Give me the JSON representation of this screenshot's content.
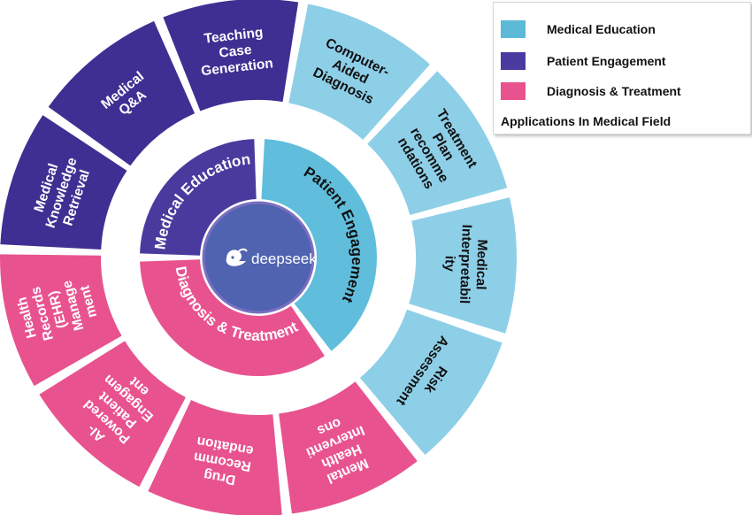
{
  "colors": {
    "education_outer": "#8ecfe8",
    "education_inner": "#60bedc",
    "engagement": "#3f2f93",
    "engagement_inner": "#4b3a9e",
    "diagnosis": "#e8538f",
    "center": "#4f63b0",
    "center_ring": "#7a6fc0"
  },
  "legend": {
    "items": [
      {
        "label": "Medical Education",
        "color": "#5cbad8"
      },
      {
        "label": "Patient Engagement",
        "color": "#4a3ba0"
      },
      {
        "label": "Diagnosis & Treatment",
        "color": "#e8538f"
      }
    ],
    "caption": "Applications In Medical Field"
  },
  "center": {
    "logo_text": "deepseek",
    "logo_icon": "whale-icon"
  },
  "inner_ring": [
    {
      "key": "medical-education",
      "label": "Medical Education",
      "color": "#4b3a9e",
      "text_color": "#ffffff"
    },
    {
      "key": "patient-engagement",
      "label": "Patient Engagement",
      "color": "#60bedc",
      "text_color": "#111111"
    },
    {
      "key": "diagnosis-treatment",
      "label": "Diagnosis & Treatment",
      "color": "#e8538f",
      "text_color": "#ffffff"
    }
  ],
  "outer_ring": [
    {
      "key": "computer-aided-diagnosis",
      "lines": [
        "Computer-",
        "Aided",
        "Diagnosis"
      ],
      "color": "#8ecfe8",
      "text_color": "#111111"
    },
    {
      "key": "treatment-plan",
      "lines": [
        "Treatment",
        "Plan",
        "recomme",
        "ndations"
      ],
      "color": "#8ecfe8",
      "text_color": "#111111"
    },
    {
      "key": "medical-interpretability",
      "lines": [
        "Medical",
        "Interpretabil",
        "ity"
      ],
      "color": "#8ecfe8",
      "text_color": "#111111"
    },
    {
      "key": "risk-assessment",
      "lines": [
        "Risk",
        "Assessment"
      ],
      "color": "#8ecfe8",
      "text_color": "#111111"
    },
    {
      "key": "mental-health",
      "lines": [
        "Mental",
        "Health",
        "Interventi",
        "ons"
      ],
      "color": "#e8538f",
      "text_color": "#ffffff"
    },
    {
      "key": "drug-recommendation",
      "lines": [
        "Drug",
        "Recomm",
        "endation"
      ],
      "color": "#e8538f",
      "text_color": "#ffffff"
    },
    {
      "key": "ai-patient-engagement",
      "lines": [
        "AI-",
        "Powered",
        "Patient",
        "Engagem",
        "ent"
      ],
      "color": "#e8538f",
      "text_color": "#ffffff"
    },
    {
      "key": "ehr-management",
      "lines": [
        "Health",
        "Records",
        "(EHR)",
        "Manage",
        "ment"
      ],
      "color": "#e8538f",
      "text_color": "#ffffff"
    },
    {
      "key": "medical-knowledge-retrieval",
      "lines": [
        "Medical",
        "Knowledge",
        "Retrieval"
      ],
      "color": "#3f2f93",
      "text_color": "#ffffff"
    },
    {
      "key": "medical-qa",
      "lines": [
        "Medical",
        "Q&A"
      ],
      "color": "#3f2f93",
      "text_color": "#ffffff"
    },
    {
      "key": "teaching-case-generation",
      "lines": [
        "Teaching",
        "Case",
        "Generation"
      ],
      "color": "#3f2f93",
      "text_color": "#ffffff"
    }
  ]
}
